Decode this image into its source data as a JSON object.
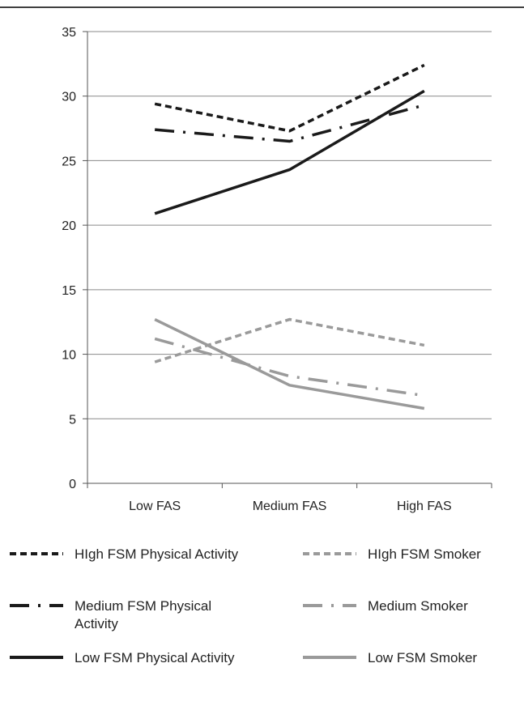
{
  "chart_data": {
    "type": "line",
    "categories": [
      "Low FAS",
      "Medium FAS",
      "High FAS"
    ],
    "ylim": [
      0,
      35
    ],
    "yticks": [
      "0",
      "5",
      "10",
      "15",
      "20",
      "25",
      "30",
      "35"
    ],
    "grid": true,
    "legend_position": "bottom",
    "series": [
      {
        "name": "HIgh FSM Physical Activity",
        "values": [
          29.4,
          27.3,
          32.4
        ],
        "color": "#1a1a1a",
        "dash": "short-dash"
      },
      {
        "name": "Medium FSM Physical Activity",
        "values": [
          27.4,
          26.5,
          29.3
        ],
        "color": "#1a1a1a",
        "dash": "long-dash-dot"
      },
      {
        "name": "Low FSM Physical Activity",
        "values": [
          20.9,
          24.3,
          30.4
        ],
        "color": "#1a1a1a",
        "dash": "solid"
      },
      {
        "name": "HIgh FSM Smoker",
        "values": [
          9.4,
          12.7,
          10.7
        ],
        "color": "#9a9a9a",
        "dash": "short-dash"
      },
      {
        "name": "Medium Smoker",
        "values": [
          11.2,
          8.3,
          6.8
        ],
        "color": "#9a9a9a",
        "dash": "long-dash-dot"
      },
      {
        "name": "Low FSM Smoker",
        "values": [
          12.7,
          7.6,
          5.8
        ],
        "color": "#9a9a9a",
        "dash": "solid"
      }
    ]
  }
}
